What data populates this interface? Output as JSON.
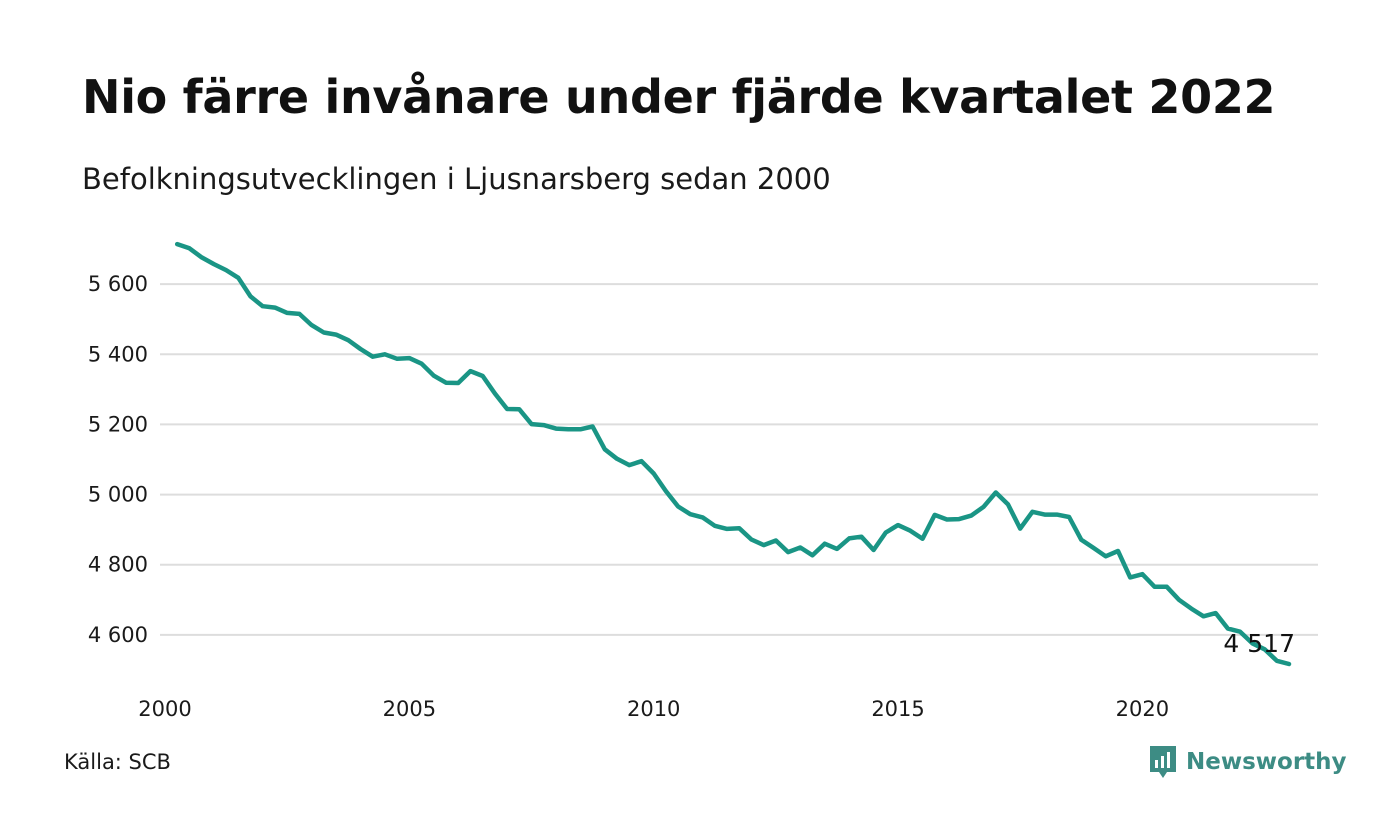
{
  "title": "Nio färre invånare under fjärde kvartalet 2022",
  "subtitle": "Befolkningsutvecklingen i Ljusnarsberg sedan 2000",
  "source": "Källa: SCB",
  "brand": {
    "name": "Newsworthy",
    "icon": "newsworthy-logo-icon",
    "color": "#3d8c84"
  },
  "colors": {
    "line": "#1a9585",
    "grid": "#dddddd",
    "text": "#111111"
  },
  "chart_data": {
    "type": "line",
    "title": "Nio färre invånare under fjärde kvartalet 2022",
    "subtitle": "Befolkningsutvecklingen i Ljusnarsberg sedan 2000",
    "xlabel": "",
    "ylabel": "",
    "xlim": [
      2000,
      2023
    ],
    "ylim": [
      4517,
      5720
    ],
    "x_ticks": [
      2000,
      2005,
      2010,
      2015,
      2020
    ],
    "x_tick_labels": [
      "2000",
      "2005",
      "2010",
      "2015",
      "2020"
    ],
    "y_ticks": [
      4600,
      4800,
      5000,
      5200,
      5400,
      5600
    ],
    "y_tick_labels": [
      "4 600",
      "4 800",
      "5 000",
      "5 200",
      "5 400",
      "5 600"
    ],
    "grid": true,
    "end_label": "4 517",
    "x": [
      2000.25,
      2000.5,
      2000.75,
      2001,
      2001.25,
      2001.5,
      2001.75,
      2002,
      2002.25,
      2002.5,
      2002.75,
      2003,
      2003.25,
      2003.5,
      2003.75,
      2004,
      2004.25,
      2004.5,
      2004.75,
      2005,
      2005.25,
      2005.5,
      2005.75,
      2006,
      2006.25,
      2006.5,
      2006.75,
      2007,
      2007.25,
      2007.5,
      2007.75,
      2008,
      2008.25,
      2008.5,
      2008.75,
      2009,
      2009.25,
      2009.5,
      2009.75,
      2010,
      2010.25,
      2010.5,
      2010.75,
      2011,
      2011.25,
      2011.5,
      2011.75,
      2012,
      2012.25,
      2012.5,
      2012.75,
      2013,
      2013.25,
      2013.5,
      2013.75,
      2014,
      2014.25,
      2014.5,
      2014.75,
      2015,
      2015.25,
      2015.5,
      2015.75,
      2016,
      2016.25,
      2016.5,
      2016.75,
      2017,
      2017.25,
      2017.5,
      2017.75,
      2018,
      2018.25,
      2018.5,
      2018.75,
      2019,
      2019.25,
      2019.5,
      2019.75,
      2020,
      2020.25,
      2020.5,
      2020.75,
      2021,
      2021.25,
      2021.5,
      2021.75,
      2022,
      2022.25,
      2022.5,
      2022.75,
      2023
    ],
    "series": [
      {
        "values": [
          5714,
          5702,
          5676,
          5657,
          5640,
          5618,
          5565,
          5537,
          5533,
          5518,
          5515,
          5483,
          5462,
          5456,
          5440,
          5415,
          5393,
          5400,
          5387,
          5389,
          5373,
          5339,
          5319,
          5318,
          5352,
          5338,
          5288,
          5244,
          5243,
          5201,
          5198,
          5188,
          5186,
          5186,
          5194,
          5129,
          5102,
          5084,
          5095,
          5060,
          5010,
          4966,
          4944,
          4935,
          4911,
          4902,
          4904,
          4872,
          4856,
          4869,
          4836,
          4849,
          4827,
          4860,
          4845,
          4875,
          4880,
          4842,
          4892,
          4913,
          4897,
          4874,
          4942,
          4929,
          4930,
          4940,
          4965,
          5006,
          4972,
          4903,
          4951,
          4943,
          4943,
          4936,
          4871,
          4848,
          4824,
          4839,
          4764,
          4773,
          4737,
          4737,
          4700,
          4675,
          4653,
          4662,
          4618,
          4609,
          4576,
          4559,
          4526,
          4517
        ]
      }
    ]
  }
}
